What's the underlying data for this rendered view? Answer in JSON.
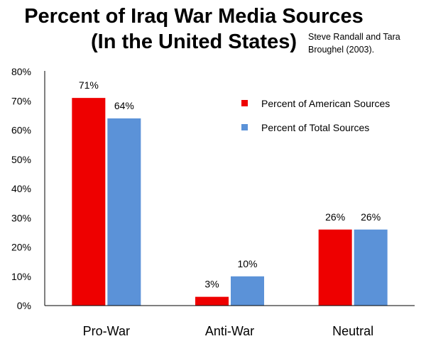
{
  "title_line1": "Percent of Iraq War Media Sources",
  "title_line2": "(In the United States)",
  "source_line1": "Steve Randall and Tara",
  "source_line2": "Broughel (2003).",
  "colors": {
    "american": "#ee0000",
    "total": "#5b92d8"
  },
  "chart_data": {
    "type": "bar",
    "title": "Percent of Iraq War Media Sources (In the United States)",
    "categories": [
      "Pro-War",
      "Anti-War",
      "Neutral"
    ],
    "series": [
      {
        "name": "Percent of American Sources",
        "values": [
          71,
          3,
          26
        ],
        "labels": [
          "71%",
          "3%",
          "26%"
        ]
      },
      {
        "name": "Percent of Total Sources",
        "values": [
          64,
          10,
          26
        ],
        "labels": [
          "64%",
          "10%",
          "26%"
        ]
      }
    ],
    "ylim": [
      0,
      80
    ],
    "yticks": [
      "0%",
      "10%",
      "20%",
      "30%",
      "40%",
      "50%",
      "60%",
      "70%",
      "80%"
    ],
    "grid": false,
    "legend": "top-right"
  }
}
